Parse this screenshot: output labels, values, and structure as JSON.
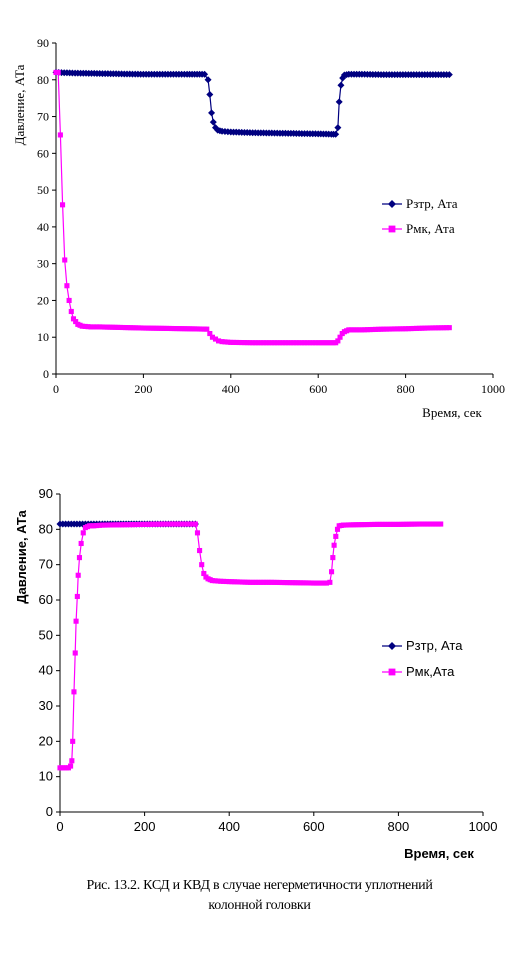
{
  "caption": {
    "line1": "Рис. 13.2.   КСД и КВД в случае негерметичности уплотнений",
    "line2": "колонной головки"
  },
  "colors": {
    "series1": "#000080",
    "series2": "#ff00ff"
  },
  "chart_data": [
    {
      "type": "line",
      "title": "",
      "xlabel": "Время, сек",
      "ylabel": "Давление, АТа",
      "xlim": [
        0,
        1000
      ],
      "ylim": [
        0,
        90
      ],
      "xticks": [
        0,
        200,
        400,
        600,
        800,
        1000
      ],
      "yticks": [
        0,
        10,
        20,
        30,
        40,
        50,
        60,
        70,
        80,
        90
      ],
      "grid": false,
      "legend": "right",
      "series": [
        {
          "name": "Рзтр, Ата",
          "marker": "diamond",
          "color": "#000080",
          "x": [
            0,
            50,
            100,
            150,
            200,
            250,
            300,
            340,
            348,
            352,
            356,
            360,
            365,
            370,
            380,
            400,
            450,
            500,
            550,
            600,
            630,
            640,
            645,
            648,
            652,
            656,
            660,
            670,
            700,
            750,
            800,
            850,
            900
          ],
          "y": [
            82,
            81.8,
            81.7,
            81.6,
            81.5,
            81.5,
            81.5,
            81.5,
            80,
            76,
            71,
            68.5,
            67,
            66.3,
            66,
            65.8,
            65.6,
            65.5,
            65.4,
            65.3,
            65.2,
            65.2,
            67,
            74,
            78.5,
            80.5,
            81.3,
            81.5,
            81.5,
            81.4,
            81.4,
            81.4,
            81.4
          ]
        },
        {
          "name": "Рмк, Ата",
          "marker": "square",
          "color": "#ff00ff",
          "x": [
            0,
            5,
            10,
            15,
            20,
            25,
            30,
            35,
            40,
            50,
            60,
            80,
            100,
            200,
            300,
            345,
            352,
            358,
            365,
            372,
            380,
            400,
            450,
            500,
            550,
            600,
            640,
            645,
            650,
            655,
            660,
            670,
            700,
            750,
            800,
            850,
            900
          ],
          "y": [
            82,
            82,
            65,
            46,
            31,
            24,
            20,
            17,
            15,
            13.5,
            13,
            12.8,
            12.8,
            12.5,
            12.3,
            12.2,
            11,
            10,
            9.5,
            9,
            8.8,
            8.6,
            8.5,
            8.5,
            8.5,
            8.5,
            8.5,
            9,
            10,
            11,
            11.5,
            12,
            12,
            12.2,
            12.3,
            12.5,
            12.6
          ]
        }
      ]
    },
    {
      "type": "line",
      "title": "",
      "xlabel": "Время, сек",
      "ylabel": "Давление, АТа",
      "xlim": [
        0,
        1000
      ],
      "ylim": [
        0,
        90
      ],
      "xticks": [
        0,
        200,
        400,
        600,
        800,
        1000
      ],
      "yticks": [
        0,
        10,
        20,
        30,
        40,
        50,
        60,
        70,
        80,
        90
      ],
      "grid": false,
      "legend": "right",
      "series": [
        {
          "name": "Рзтр, Ата",
          "marker": "diamond",
          "color": "#000080",
          "x": [
            0,
            20,
            40,
            60,
            80,
            100,
            150,
            200,
            250,
            300,
            320
          ],
          "y": [
            81.5,
            81.5,
            81.5,
            81.5,
            81.5,
            81.5,
            81.5,
            81.5,
            81.5,
            81.5,
            81.5
          ]
        },
        {
          "name": "Рмк,Ата",
          "marker": "square",
          "color": "#ff00ff",
          "x": [
            0,
            10,
            20,
            25,
            28,
            30,
            33,
            36,
            38,
            41,
            43,
            46,
            50,
            55,
            60,
            70,
            80,
            100,
            150,
            200,
            250,
            300,
            320,
            325,
            330,
            335,
            340,
            345,
            350,
            360,
            380,
            400,
            450,
            500,
            550,
            600,
            630,
            638,
            642,
            645,
            648,
            652,
            656,
            660,
            670,
            700,
            750,
            800,
            850,
            900
          ],
          "y": [
            12.5,
            12.5,
            12.5,
            13,
            14.5,
            20,
            34,
            45,
            54,
            61,
            67,
            72,
            76,
            79,
            80.5,
            81,
            81,
            81.2,
            81.3,
            81.4,
            81.5,
            81.5,
            81.5,
            79,
            74,
            70,
            67.5,
            66.5,
            66,
            65.5,
            65.3,
            65.2,
            65,
            65,
            64.9,
            64.8,
            64.8,
            65,
            68,
            72,
            75.5,
            78,
            80,
            81,
            81.2,
            81.3,
            81.4,
            81.4,
            81.5,
            81.5
          ]
        }
      ]
    }
  ]
}
